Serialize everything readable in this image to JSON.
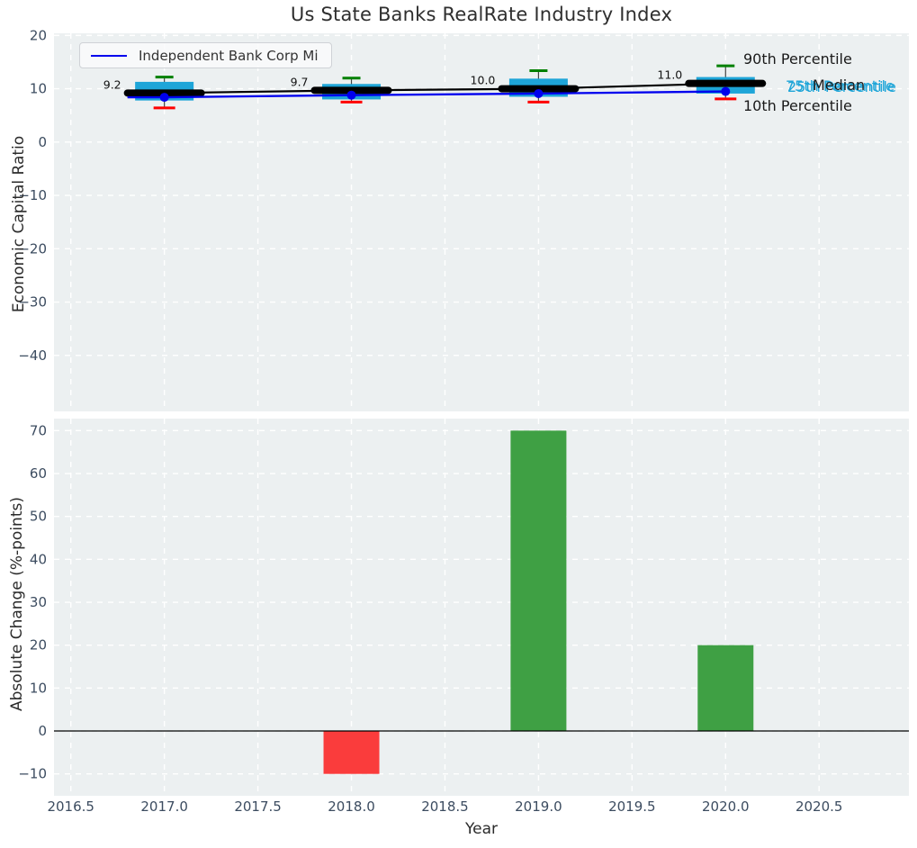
{
  "title": "Us State Banks RealRate Industry Index",
  "colors": {
    "axes_bg": "#ecf0f1",
    "grid": "#ffffff",
    "tick_label": "#3c4c60",
    "text": "#2b2b2b",
    "box": "#1ea5d8",
    "company_line": "#0000ee",
    "median_line": "#000000",
    "p90_cap": "#008000",
    "p10_cap": "#ff0000",
    "bar_positive": "#3fa044",
    "bar_negative": "#fa3c3c",
    "value_label": "#111111",
    "cyan_annotation": "#1ea5d8"
  },
  "chart_data": [
    {
      "type": "line",
      "subtype": "percentile-band-boxes with median line and company line",
      "title": "Us State Banks RealRate Industry Index",
      "xlabel": "",
      "ylabel": "Economic Capital Ratio",
      "ylim": [
        -50.5,
        20.4
      ],
      "xlim": [
        2016.41,
        2020.98
      ],
      "grid": "on",
      "legend_position": "upper left",
      "legend": {
        "label": "Independent Bank Corp Mi"
      },
      "years": [
        2017,
        2018,
        2019,
        2020
      ],
      "yticks": [
        20,
        10,
        0,
        -10,
        -20,
        -30,
        -40
      ],
      "series": [
        {
          "name": "90th Percentile",
          "values": [
            12.2,
            12.0,
            13.4,
            14.3
          ]
        },
        {
          "name": "75th Percentile",
          "values": [
            11.3,
            10.9,
            11.9,
            12.2
          ]
        },
        {
          "name": "Median",
          "values": [
            9.2,
            9.7,
            10.0,
            11.0
          ]
        },
        {
          "name": "Independent Bank Corp Mi",
          "values": [
            8.4,
            8.8,
            9.1,
            9.5
          ]
        },
        {
          "name": "25th Percentile",
          "values": [
            7.8,
            8.0,
            8.5,
            9.1
          ]
        },
        {
          "name": "10th Percentile",
          "values": [
            6.4,
            7.5,
            7.5,
            8.1
          ]
        }
      ],
      "median_labels": [
        "9.2",
        "9.7",
        "10.0",
        "11.0"
      ],
      "annotations": {
        "p90": "90th Percentile",
        "median": "Median",
        "p75": "75th Percentile",
        "p25": "25th Percentile",
        "p10": "10th Percentile"
      }
    },
    {
      "type": "bar",
      "title": "",
      "xlabel": "Year",
      "ylabel": "Absolute Change (%-points)",
      "ylim": [
        -15.1,
        72.8
      ],
      "xlim": [
        2016.41,
        2020.98
      ],
      "grid": "on",
      "yticks": [
        70,
        60,
        50,
        40,
        30,
        20,
        10,
        0,
        -10
      ],
      "xticks": [
        "2016.5",
        "2017.0",
        "2017.5",
        "2018.0",
        "2018.5",
        "2019.0",
        "2019.5",
        "2020.0",
        "2020.5"
      ],
      "categories": [
        2018,
        2019,
        2020
      ],
      "values": [
        -10,
        70,
        20
      ],
      "bar_colors": [
        "#fa3c3c",
        "#3fa044",
        "#3fa044"
      ],
      "zero_line": true
    }
  ]
}
